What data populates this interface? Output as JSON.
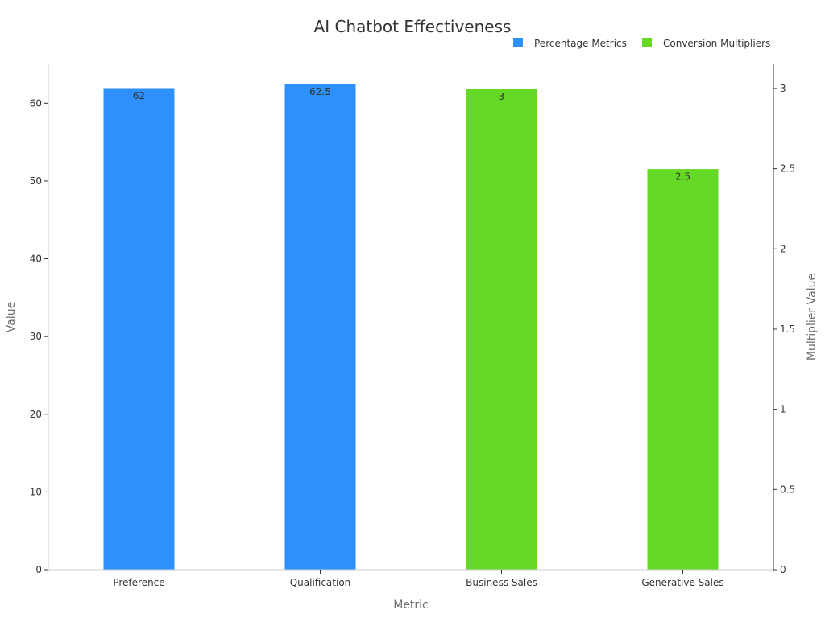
{
  "chart_data": {
    "type": "bar",
    "title": "AI Chatbot Effectiveness",
    "xlabel": "Metric",
    "ylabel": "Value",
    "y2label": "Multiplier Value",
    "categories": [
      "Preference",
      "Qualification",
      "Business Sales",
      "Generative Sales"
    ],
    "ylim": [
      0,
      65
    ],
    "y2lim": [
      0,
      3.15
    ],
    "yticks": [
      "0",
      "10",
      "20",
      "30",
      "40",
      "50",
      "60"
    ],
    "y2ticks": [
      "0",
      "0.5",
      "1",
      "1.5",
      "2",
      "2.5",
      "3"
    ],
    "grid": false,
    "legend_position": "top-right",
    "series": [
      {
        "name": "Percentage Metrics",
        "axis": "left",
        "color": "#2e90fa",
        "values": [
          62,
          62.5,
          null,
          null
        ],
        "labels": [
          "62",
          "62.5",
          "",
          ""
        ]
      },
      {
        "name": "Conversion Multipliers",
        "axis": "right",
        "color": "#66d926",
        "values": [
          null,
          null,
          3,
          2.5
        ],
        "labels": [
          "",
          "",
          "3",
          "2.5"
        ]
      }
    ]
  }
}
